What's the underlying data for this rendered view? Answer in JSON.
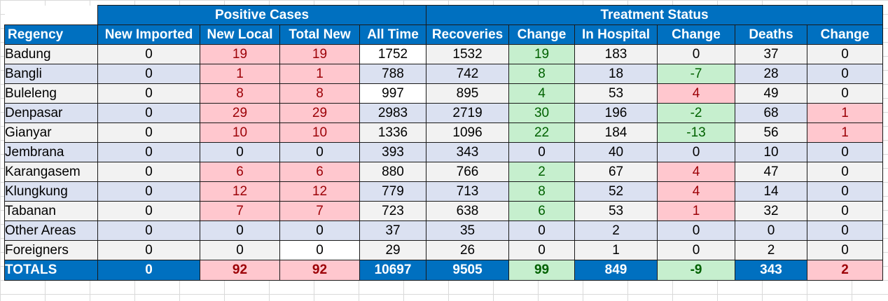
{
  "groups": {
    "positive": "Positive Cases",
    "treatment": "Treatment Status"
  },
  "headers": [
    "Regency",
    "New Imported",
    "New Local",
    "Total New",
    "All Time",
    "Recoveries",
    "Change",
    "In Hospital",
    "Change",
    "Deaths",
    "Change"
  ],
  "rows": [
    [
      "Badung",
      "0",
      "19",
      "19",
      "1752",
      "1532",
      "19",
      "183",
      "0",
      "37",
      "0"
    ],
    [
      "Bangli",
      "0",
      "1",
      "1",
      "788",
      "742",
      "8",
      "18",
      "-7",
      "28",
      "0"
    ],
    [
      "Buleleng",
      "0",
      "8",
      "8",
      "997",
      "895",
      "4",
      "53",
      "4",
      "49",
      "0"
    ],
    [
      "Denpasar",
      "0",
      "29",
      "29",
      "2983",
      "2719",
      "30",
      "196",
      "-2",
      "68",
      "1"
    ],
    [
      "Gianyar",
      "0",
      "10",
      "10",
      "1336",
      "1096",
      "22",
      "184",
      "-13",
      "56",
      "1"
    ],
    [
      "Jembrana",
      "0",
      "0",
      "0",
      "393",
      "343",
      "0",
      "40",
      "0",
      "10",
      "0"
    ],
    [
      "Karangasem",
      "0",
      "6",
      "6",
      "880",
      "766",
      "2",
      "67",
      "4",
      "47",
      "0"
    ],
    [
      "Klungkung",
      "0",
      "12",
      "12",
      "779",
      "713",
      "8",
      "52",
      "4",
      "14",
      "0"
    ],
    [
      "Tabanan",
      "0",
      "7",
      "7",
      "723",
      "638",
      "6",
      "53",
      "1",
      "32",
      "0"
    ],
    [
      "Other Areas",
      "0",
      "0",
      "0",
      "37",
      "35",
      "0",
      "2",
      "0",
      "0",
      "0"
    ],
    [
      "Foreigners",
      "0",
      "0",
      "0",
      "29",
      "26",
      "0",
      "1",
      "0",
      "2",
      "0"
    ]
  ],
  "totals": [
    "TOTALS",
    "0",
    "92",
    "92",
    "10697",
    "9505",
    "99",
    "849",
    "-9",
    "343",
    "2"
  ],
  "cell_highlights": {
    "Badung": [
      "",
      "",
      "red",
      "red",
      "white",
      "",
      "green",
      "",
      "",
      "",
      ""
    ],
    "Bangli": [
      "",
      "",
      "red",
      "red",
      "",
      "",
      "green",
      "",
      "green",
      "",
      ""
    ],
    "Buleleng": [
      "",
      "",
      "red",
      "red",
      "white",
      "",
      "green",
      "",
      "red",
      "",
      ""
    ],
    "Denpasar": [
      "",
      "",
      "red",
      "red",
      "",
      "",
      "green",
      "",
      "green",
      "",
      "red"
    ],
    "Gianyar": [
      "",
      "",
      "red",
      "red",
      "",
      "",
      "green",
      "",
      "green",
      "",
      "red"
    ],
    "Jembrana": [
      "",
      "",
      "",
      "",
      "",
      "",
      "",
      "",
      "",
      "",
      ""
    ],
    "Karangasem": [
      "",
      "",
      "red",
      "red",
      "",
      "",
      "green",
      "",
      "red",
      "",
      ""
    ],
    "Klungkung": [
      "",
      "",
      "red",
      "red",
      "",
      "",
      "green",
      "",
      "red",
      "",
      ""
    ],
    "Tabanan": [
      "",
      "",
      "red",
      "red",
      "",
      "",
      "green",
      "",
      "red",
      "",
      ""
    ],
    "Other Areas": [
      "",
      "",
      "",
      "",
      "",
      "",
      "",
      "",
      "",
      "",
      ""
    ],
    "Foreigners": [
      "",
      "",
      "",
      "white",
      "",
      "",
      "",
      "",
      "",
      "",
      ""
    ],
    "TOTALS": [
      "",
      "",
      "red",
      "red",
      "",
      "",
      "green",
      "",
      "green",
      "",
      "red"
    ]
  },
  "colors": {
    "header_blue": "#0070c0",
    "row_odd": "#f2f2f2",
    "row_even": "#dbe1f1",
    "increase_fill": "#ffc7ce",
    "increase_text": "#9c0006",
    "decrease_fill": "#c6efce",
    "decrease_text": "#006100"
  }
}
